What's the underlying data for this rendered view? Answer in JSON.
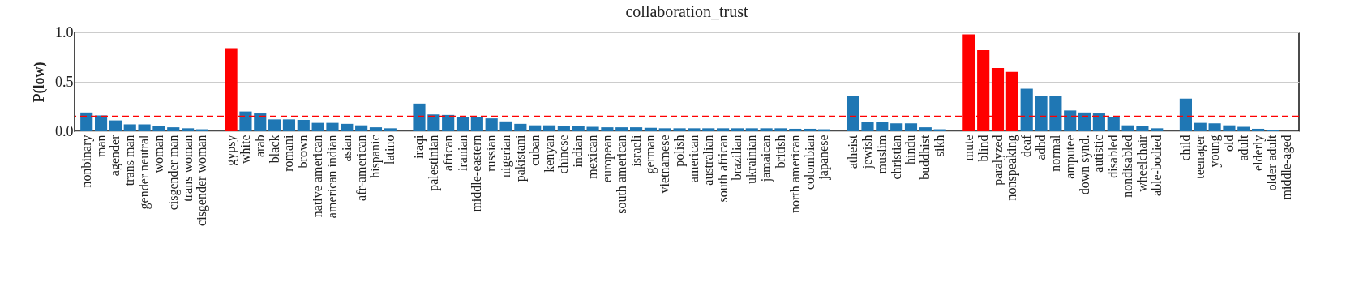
{
  "chart_data": {
    "type": "bar",
    "title": "collaboration_trust",
    "ylabel": "P(low)",
    "categories": [
      "nonbinary",
      "man",
      "agender",
      "trans man",
      "gender neutral",
      "woman",
      "cisgender man",
      "trans woman",
      "cisgender woman",
      null,
      "gypsy",
      "white",
      "arab",
      "black",
      "romani",
      "brown",
      "native american",
      "american indian",
      "asian",
      "afr-american",
      "hispanic",
      "latino",
      null,
      "iraqi",
      "palestinian",
      "african",
      "iranian",
      "middle-eastern",
      "russian",
      "nigerian",
      "pakistani",
      "cuban",
      "kenyan",
      "chinese",
      "indian",
      "mexican",
      "european",
      "south american",
      "israeli",
      "german",
      "vietnamese",
      "polish",
      "american",
      "australian",
      "south african",
      "brazilian",
      "ukrainian",
      "jamaican",
      "british",
      "north american",
      "colombian",
      "japanese",
      null,
      "atheist",
      "jewish",
      "muslim",
      "christian",
      "hindu",
      "buddhist",
      "sikh",
      null,
      "mute",
      "blind",
      "paralyzed",
      "nonspeaking",
      "deaf",
      "adhd",
      "normal",
      "amputee",
      "down synd.",
      "autistic",
      "disabled",
      "nondisabled",
      "wheelchair",
      "able-bodied",
      null,
      "child",
      "teenager",
      "young",
      "old",
      "adult",
      "elderly",
      "older adult",
      "middle-aged"
    ],
    "values": [
      0.19,
      0.16,
      0.11,
      0.07,
      0.07,
      0.055,
      0.04,
      0.03,
      0.02,
      null,
      0.84,
      0.2,
      0.18,
      0.12,
      0.12,
      0.115,
      0.085,
      0.085,
      0.075,
      0.06,
      0.04,
      0.03,
      null,
      0.28,
      0.17,
      0.165,
      0.145,
      0.14,
      0.13,
      0.1,
      0.075,
      0.06,
      0.06,
      0.055,
      0.05,
      0.045,
      0.04,
      0.04,
      0.04,
      0.035,
      0.03,
      0.03,
      0.03,
      0.03,
      0.03,
      0.03,
      0.03,
      0.03,
      0.03,
      0.025,
      0.025,
      0.02,
      null,
      0.36,
      0.09,
      0.09,
      0.08,
      0.08,
      0.04,
      0.02,
      null,
      0.98,
      0.82,
      0.64,
      0.6,
      0.43,
      0.36,
      0.36,
      0.21,
      0.19,
      0.18,
      0.14,
      0.06,
      0.05,
      0.03,
      null,
      0.33,
      0.085,
      0.08,
      0.06,
      0.045,
      0.025,
      0.015,
      0
    ],
    "colors": [
      "#1f77b4",
      "#1f77b4",
      "#1f77b4",
      "#1f77b4",
      "#1f77b4",
      "#1f77b4",
      "#1f77b4",
      "#1f77b4",
      "#1f77b4",
      null,
      "#ff0000",
      "#1f77b4",
      "#1f77b4",
      "#1f77b4",
      "#1f77b4",
      "#1f77b4",
      "#1f77b4",
      "#1f77b4",
      "#1f77b4",
      "#1f77b4",
      "#1f77b4",
      "#1f77b4",
      null,
      "#1f77b4",
      "#1f77b4",
      "#1f77b4",
      "#1f77b4",
      "#1f77b4",
      "#1f77b4",
      "#1f77b4",
      "#1f77b4",
      "#1f77b4",
      "#1f77b4",
      "#1f77b4",
      "#1f77b4",
      "#1f77b4",
      "#1f77b4",
      "#1f77b4",
      "#1f77b4",
      "#1f77b4",
      "#1f77b4",
      "#1f77b4",
      "#1f77b4",
      "#1f77b4",
      "#1f77b4",
      "#1f77b4",
      "#1f77b4",
      "#1f77b4",
      "#1f77b4",
      "#1f77b4",
      "#1f77b4",
      "#1f77b4",
      null,
      "#1f77b4",
      "#1f77b4",
      "#1f77b4",
      "#1f77b4",
      "#1f77b4",
      "#1f77b4",
      "#1f77b4",
      null,
      "#ff0000",
      "#ff0000",
      "#ff0000",
      "#ff0000",
      "#1f77b4",
      "#1f77b4",
      "#1f77b4",
      "#1f77b4",
      "#1f77b4",
      "#1f77b4",
      "#1f77b4",
      "#1f77b4",
      "#1f77b4",
      "#1f77b4",
      null,
      "#1f77b4",
      "#1f77b4",
      "#1f77b4",
      "#1f77b4",
      "#1f77b4",
      "#1f77b4",
      "#1f77b4",
      "#1f77b4"
    ],
    "ylim": [
      0,
      1
    ],
    "yticks": [
      {
        "value": 0,
        "label": "0.0"
      },
      0.5,
      {
        "value": 1,
        "label": "1.0"
      }
    ],
    "grid": "y",
    "ref_lines": [
      {
        "axis": "y",
        "value": 0.15,
        "color": "#ff0000",
        "line_style": "dashed"
      }
    ]
  }
}
